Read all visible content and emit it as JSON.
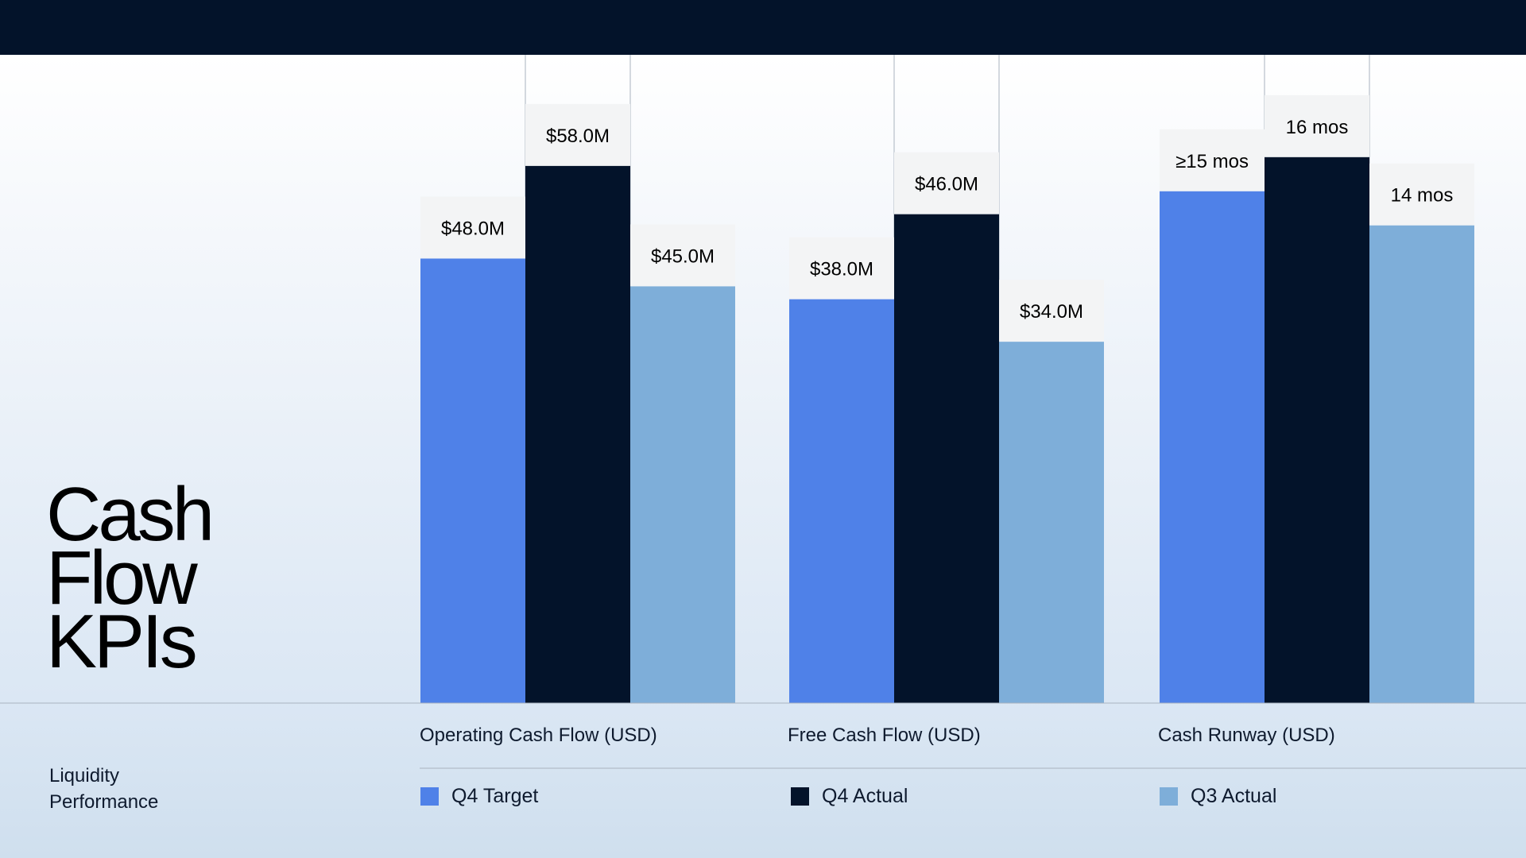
{
  "slide": {
    "title_lines": [
      "Cash",
      "Flow",
      "KPIs"
    ],
    "subtitle_lines": [
      "Liquidity",
      "Performance"
    ]
  },
  "colors": {
    "header_bar": "#03132a",
    "label_box": "#f3f4f5",
    "divider": "#a9b3bf"
  },
  "chart_data": {
    "type": "bar",
    "categories": [
      "Operating Cash Flow (USD)",
      "Free Cash Flow (USD)",
      "Cash Runway (USD)"
    ],
    "series": [
      {
        "name": "Q4 Target",
        "color": "#4f81e8",
        "values": [
          48.0,
          38.0,
          15
        ],
        "labels": [
          "$48.0M",
          "$38.0M",
          "≥15 mos"
        ]
      },
      {
        "name": "Q4 Actual",
        "color": "#03132a",
        "values": [
          58.0,
          46.0,
          16
        ],
        "labels": [
          "$58.0M",
          "$46.0M",
          "16 mos"
        ]
      },
      {
        "name": "Q3 Actual",
        "color": "#7eaed9",
        "values": [
          45.0,
          34.0,
          14
        ],
        "labels": [
          "$45.0M",
          "$34.0M",
          "14 mos"
        ]
      }
    ],
    "per_category_max": [
      70,
      61,
      19
    ],
    "grid": false,
    "legend_position": "bottom"
  }
}
